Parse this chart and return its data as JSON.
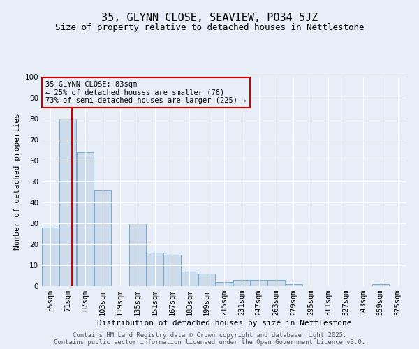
{
  "title": "35, GLYNN CLOSE, SEAVIEW, PO34 5JZ",
  "subtitle": "Size of property relative to detached houses in Nettlestone",
  "xlabel": "Distribution of detached houses by size in Nettlestone",
  "ylabel": "Number of detached properties",
  "bar_color": "#ccdcec",
  "bar_edge_color": "#7aaac8",
  "background_color": "#e8eef8",
  "grid_color": "#ffffff",
  "annotation_box_color": "#cc0000",
  "vline_color": "#cc0000",
  "bins_left": [
    55,
    71,
    87,
    103,
    119,
    135,
    151,
    167,
    183,
    199,
    215,
    231,
    247,
    263,
    279,
    295,
    311,
    327,
    343,
    359
  ],
  "bin_labels": [
    "55sqm",
    "71sqm",
    "87sqm",
    "103sqm",
    "119sqm",
    "135sqm",
    "151sqm",
    "167sqm",
    "183sqm",
    "199sqm",
    "215sqm",
    "231sqm",
    "247sqm",
    "263sqm",
    "279sqm",
    "295sqm",
    "311sqm",
    "327sqm",
    "343sqm",
    "359sqm",
    "375sqm"
  ],
  "values": [
    28,
    80,
    64,
    46,
    0,
    30,
    16,
    15,
    7,
    6,
    2,
    3,
    3,
    3,
    1,
    0,
    0,
    0,
    0,
    1
  ],
  "ylim": [
    0,
    100
  ],
  "yticks": [
    0,
    10,
    20,
    30,
    40,
    50,
    60,
    70,
    80,
    90,
    100
  ],
  "property_size": 83,
  "annotation_line1": "35 GLYNN CLOSE: 83sqm",
  "annotation_line2": "← 25% of detached houses are smaller (76)",
  "annotation_line3": "73% of semi-detached houses are larger (225) →",
  "footer_text": "Contains HM Land Registry data © Crown copyright and database right 2025.\nContains public sector information licensed under the Open Government Licence v3.0.",
  "title_fontsize": 11,
  "subtitle_fontsize": 9,
  "annotation_fontsize": 7.5,
  "axis_label_fontsize": 8,
  "tick_fontsize": 7.5,
  "footer_fontsize": 6.5,
  "bin_width": 16
}
